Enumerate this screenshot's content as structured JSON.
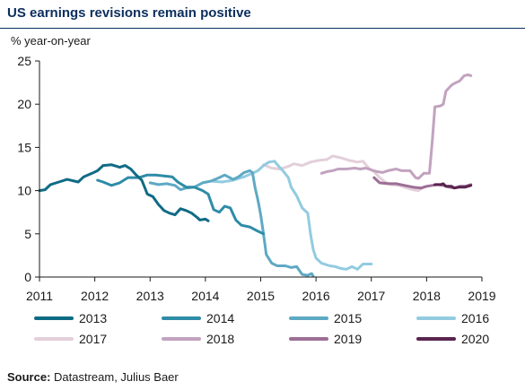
{
  "title": "US earnings revisions remain positive",
  "source": {
    "label": "Source:",
    "text": " Datastream, Julius Baer"
  },
  "chart_data": {
    "type": "line",
    "title": "US earnings revisions remain positive",
    "ylabel": "% year-on-year",
    "xlabel": "",
    "xlim": [
      2011,
      2019
    ],
    "ylim": [
      0,
      25
    ],
    "x_ticks": [
      "2011",
      "2012",
      "2013",
      "2014",
      "2015",
      "2016",
      "2017",
      "2018",
      "2019"
    ],
    "y_ticks": [
      "0",
      "5",
      "10",
      "15",
      "20",
      "25"
    ],
    "grid": false,
    "legend_position": "bottom",
    "series": [
      {
        "name": "2013",
        "color": "#0f6b85",
        "points": [
          [
            2011.0,
            10.0
          ],
          [
            2011.1,
            10.1
          ],
          [
            2011.2,
            10.7
          ],
          [
            2011.35,
            11.0
          ],
          [
            2011.5,
            11.3
          ],
          [
            2011.7,
            11.0
          ],
          [
            2011.8,
            11.6
          ],
          [
            2011.95,
            12.0
          ],
          [
            2012.05,
            12.3
          ],
          [
            2012.15,
            12.9
          ],
          [
            2012.3,
            13.0
          ],
          [
            2012.45,
            12.7
          ],
          [
            2012.55,
            12.9
          ],
          [
            2012.65,
            12.5
          ],
          [
            2012.75,
            11.8
          ],
          [
            2012.85,
            11.2
          ],
          [
            2012.95,
            9.6
          ],
          [
            2013.05,
            9.3
          ],
          [
            2013.15,
            8.4
          ],
          [
            2013.25,
            7.7
          ],
          [
            2013.35,
            7.4
          ],
          [
            2013.45,
            7.2
          ],
          [
            2013.55,
            7.9
          ],
          [
            2013.65,
            7.7
          ],
          [
            2013.75,
            7.4
          ],
          [
            2013.85,
            6.9
          ],
          [
            2013.9,
            6.6
          ],
          [
            2014.0,
            6.7
          ],
          [
            2014.05,
            6.5
          ]
        ]
      },
      {
        "name": "2014",
        "color": "#2e8ca7",
        "points": [
          [
            2012.05,
            11.2
          ],
          [
            2012.15,
            11.0
          ],
          [
            2012.3,
            10.6
          ],
          [
            2012.45,
            10.9
          ],
          [
            2012.6,
            11.5
          ],
          [
            2012.8,
            11.5
          ],
          [
            2012.95,
            11.8
          ],
          [
            2013.1,
            11.8
          ],
          [
            2013.25,
            11.7
          ],
          [
            2013.4,
            11.6
          ],
          [
            2013.5,
            11.0
          ],
          [
            2013.65,
            10.4
          ],
          [
            2013.8,
            10.4
          ],
          [
            2013.95,
            10.0
          ],
          [
            2014.05,
            9.6
          ],
          [
            2014.15,
            7.8
          ],
          [
            2014.25,
            7.5
          ],
          [
            2014.35,
            8.2
          ],
          [
            2014.45,
            8.0
          ],
          [
            2014.55,
            6.6
          ],
          [
            2014.65,
            6.0
          ],
          [
            2014.8,
            5.8
          ],
          [
            2014.95,
            5.3
          ],
          [
            2015.05,
            5.0
          ]
        ]
      },
      {
        "name": "2015",
        "color": "#5ea9c4",
        "points": [
          [
            2013.0,
            10.9
          ],
          [
            2013.15,
            10.7
          ],
          [
            2013.3,
            10.8
          ],
          [
            2013.45,
            10.6
          ],
          [
            2013.55,
            10.1
          ],
          [
            2013.65,
            10.3
          ],
          [
            2013.8,
            10.4
          ],
          [
            2013.95,
            10.9
          ],
          [
            2014.1,
            11.1
          ],
          [
            2014.25,
            11.5
          ],
          [
            2014.35,
            11.8
          ],
          [
            2014.5,
            11.3
          ],
          [
            2014.6,
            11.6
          ],
          [
            2014.7,
            12.1
          ],
          [
            2014.8,
            12.3
          ],
          [
            2014.85,
            12.1
          ],
          [
            2014.9,
            10.3
          ],
          [
            2014.95,
            8.9
          ],
          [
            2015.0,
            7.2
          ],
          [
            2015.05,
            5.0
          ],
          [
            2015.1,
            2.6
          ],
          [
            2015.2,
            1.6
          ],
          [
            2015.3,
            1.3
          ],
          [
            2015.45,
            1.3
          ],
          [
            2015.55,
            1.1
          ],
          [
            2015.65,
            1.2
          ],
          [
            2015.75,
            0.3
          ],
          [
            2015.85,
            0.2
          ],
          [
            2015.92,
            0.4
          ],
          [
            2015.95,
            0.1
          ]
        ]
      },
      {
        "name": "2016",
        "color": "#92cbe0",
        "points": [
          [
            2014.1,
            11.1
          ],
          [
            2014.3,
            11.0
          ],
          [
            2014.5,
            11.2
          ],
          [
            2014.7,
            11.6
          ],
          [
            2014.85,
            12.0
          ],
          [
            2014.95,
            12.3
          ],
          [
            2015.05,
            12.9
          ],
          [
            2015.15,
            13.3
          ],
          [
            2015.25,
            13.4
          ],
          [
            2015.3,
            13.0
          ],
          [
            2015.4,
            12.3
          ],
          [
            2015.5,
            11.5
          ],
          [
            2015.55,
            10.4
          ],
          [
            2015.65,
            9.4
          ],
          [
            2015.75,
            8.0
          ],
          [
            2015.85,
            7.4
          ],
          [
            2015.9,
            5.0
          ],
          [
            2015.95,
            3.2
          ],
          [
            2016.0,
            2.2
          ],
          [
            2016.1,
            1.6
          ],
          [
            2016.25,
            1.3
          ],
          [
            2016.35,
            1.2
          ],
          [
            2016.45,
            1.0
          ],
          [
            2016.55,
            0.9
          ],
          [
            2016.65,
            1.2
          ],
          [
            2016.75,
            0.9
          ],
          [
            2016.85,
            1.5
          ],
          [
            2017.0,
            1.5
          ]
        ]
      },
      {
        "name": "2017",
        "color": "#e3cfda",
        "points": [
          [
            2015.05,
            13.0
          ],
          [
            2015.2,
            12.6
          ],
          [
            2015.35,
            12.5
          ],
          [
            2015.5,
            12.8
          ],
          [
            2015.6,
            13.1
          ],
          [
            2015.75,
            12.9
          ],
          [
            2015.9,
            13.3
          ],
          [
            2016.05,
            13.5
          ],
          [
            2016.2,
            13.6
          ],
          [
            2016.3,
            14.0
          ],
          [
            2016.45,
            13.8
          ],
          [
            2016.6,
            13.5
          ],
          [
            2016.75,
            13.3
          ],
          [
            2016.85,
            13.4
          ],
          [
            2016.95,
            12.6
          ],
          [
            2017.05,
            12.2
          ],
          [
            2017.15,
            11.5
          ],
          [
            2017.25,
            11.0
          ],
          [
            2017.35,
            10.7
          ],
          [
            2017.5,
            10.6
          ],
          [
            2017.65,
            10.3
          ],
          [
            2017.75,
            10.1
          ],
          [
            2017.85,
            10.0
          ],
          [
            2017.95,
            10.4
          ],
          [
            2018.0,
            10.5
          ]
        ]
      },
      {
        "name": "2018",
        "color": "#c2a2bf",
        "points": [
          [
            2016.1,
            12.0
          ],
          [
            2016.2,
            12.2
          ],
          [
            2016.3,
            12.3
          ],
          [
            2016.4,
            12.5
          ],
          [
            2016.55,
            12.5
          ],
          [
            2016.7,
            12.6
          ],
          [
            2016.8,
            12.5
          ],
          [
            2016.9,
            12.6
          ],
          [
            2017.0,
            12.4
          ],
          [
            2017.1,
            12.2
          ],
          [
            2017.2,
            12.1
          ],
          [
            2017.3,
            12.3
          ],
          [
            2017.45,
            12.5
          ],
          [
            2017.55,
            12.3
          ],
          [
            2017.7,
            12.3
          ],
          [
            2017.8,
            11.5
          ],
          [
            2017.85,
            11.4
          ],
          [
            2017.95,
            12.0
          ],
          [
            2018.0,
            12.0
          ],
          [
            2018.05,
            12.0
          ],
          [
            2018.1,
            15.5
          ],
          [
            2018.15,
            19.7
          ],
          [
            2018.25,
            19.8
          ],
          [
            2018.3,
            20.0
          ],
          [
            2018.35,
            21.5
          ],
          [
            2018.45,
            22.2
          ],
          [
            2018.5,
            22.4
          ],
          [
            2018.6,
            22.7
          ],
          [
            2018.68,
            23.3
          ],
          [
            2018.75,
            23.4
          ],
          [
            2018.8,
            23.3
          ]
        ]
      },
      {
        "name": "2019",
        "color": "#9c6e95",
        "points": [
          [
            2017.05,
            11.5
          ],
          [
            2017.15,
            10.9
          ],
          [
            2017.3,
            10.8
          ],
          [
            2017.45,
            10.8
          ],
          [
            2017.6,
            10.6
          ],
          [
            2017.75,
            10.4
          ],
          [
            2017.9,
            10.3
          ],
          [
            2018.0,
            10.5
          ],
          [
            2018.1,
            10.6
          ],
          [
            2018.2,
            10.7
          ],
          [
            2018.3,
            10.6
          ],
          [
            2018.4,
            10.4
          ],
          [
            2018.5,
            10.3
          ],
          [
            2018.6,
            10.5
          ],
          [
            2018.7,
            10.5
          ],
          [
            2018.8,
            10.7
          ]
        ]
      },
      {
        "name": "2020",
        "color": "#5a2450",
        "points": [
          [
            2018.15,
            10.7
          ],
          [
            2018.25,
            10.7
          ],
          [
            2018.3,
            10.8
          ],
          [
            2018.35,
            10.5
          ],
          [
            2018.45,
            10.5
          ],
          [
            2018.5,
            10.3
          ],
          [
            2018.6,
            10.4
          ],
          [
            2018.7,
            10.4
          ],
          [
            2018.8,
            10.6
          ]
        ]
      }
    ]
  }
}
